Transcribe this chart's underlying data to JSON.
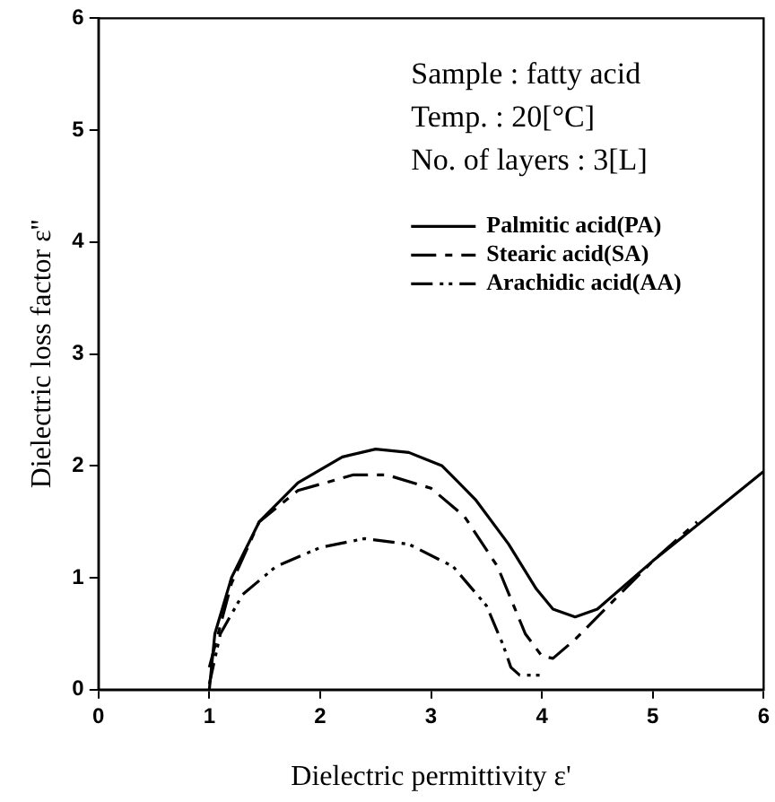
{
  "chart_data": {
    "type": "line",
    "xlabel": "Dielectric permittivity ε'",
    "ylabel": "Dielectric loss factor ε''",
    "xlim": [
      0,
      6
    ],
    "xticks": [
      0,
      1,
      2,
      3,
      4,
      5,
      6
    ],
    "ylim": [
      0,
      6
    ],
    "yticks": [
      0,
      1,
      2,
      3,
      4,
      5,
      6
    ],
    "grid": false,
    "legend": "top right",
    "marker": "none",
    "annotations": [
      "Sample : fatty acid",
      "Temp. : 20[°C]",
      "No. of layers : 3[L]"
    ],
    "series": [
      {
        "name": "Palmitic acid(PA)",
        "color": "#000000",
        "line_style": "solid",
        "x": [
          1.0,
          1.05,
          1.2,
          1.45,
          1.8,
          2.2,
          2.5,
          2.8,
          3.1,
          3.4,
          3.7,
          3.95,
          4.1,
          4.3,
          4.5,
          5.0,
          5.5,
          6.0
        ],
        "values": [
          0,
          0.5,
          1.0,
          1.5,
          1.85,
          2.08,
          2.15,
          2.12,
          2.0,
          1.7,
          1.3,
          0.9,
          0.72,
          0.65,
          0.72,
          1.15,
          1.55,
          1.95
        ]
      },
      {
        "name": "Stearic acid(SA)",
        "color": "#000000",
        "line_style": "dashed",
        "x": [
          1.0,
          1.2,
          1.45,
          1.8,
          2.3,
          2.6,
          3.0,
          3.3,
          3.6,
          3.85,
          4.0,
          4.1,
          4.3,
          4.6,
          5.0,
          5.4
        ],
        "values": [
          0.2,
          0.95,
          1.5,
          1.78,
          1.92,
          1.92,
          1.8,
          1.55,
          1.1,
          0.5,
          0.3,
          0.28,
          0.45,
          0.75,
          1.15,
          1.5
        ]
      },
      {
        "name": "Arachidic acid(AA)",
        "color": "#000000",
        "line_style": "dotted",
        "x": [
          1.0,
          1.1,
          1.3,
          1.6,
          2.0,
          2.4,
          2.8,
          3.2,
          3.5,
          3.65,
          3.72,
          3.8,
          4.0
        ],
        "values": [
          0.05,
          0.5,
          0.85,
          1.1,
          1.27,
          1.35,
          1.3,
          1.1,
          0.75,
          0.4,
          0.2,
          0.13,
          0.13
        ]
      }
    ]
  }
}
